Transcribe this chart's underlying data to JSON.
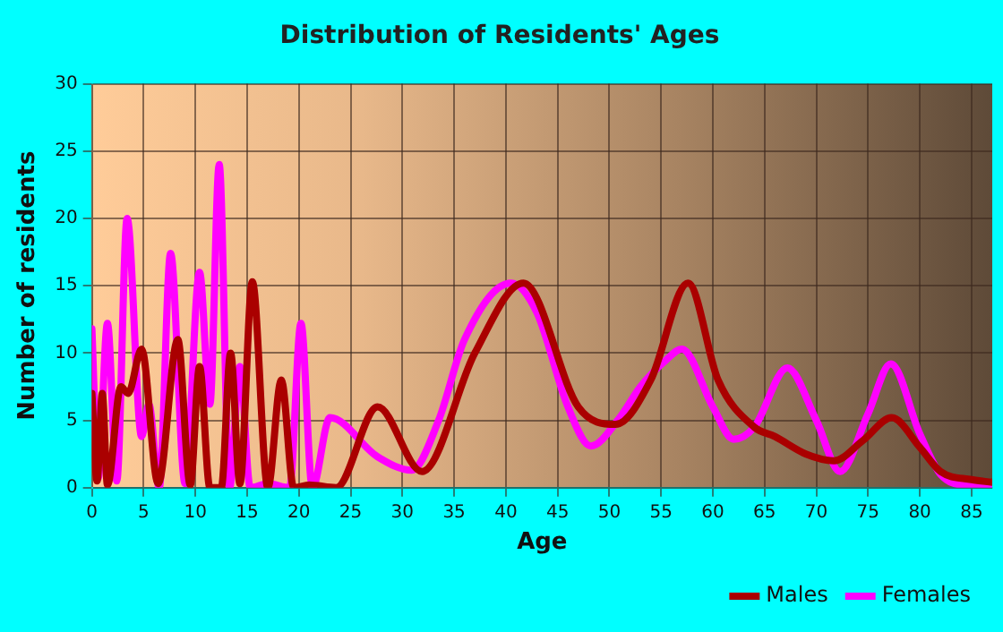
{
  "chart_data": {
    "type": "line",
    "title": "Distribution of Residents' Ages",
    "xlabel": "Age",
    "ylabel": "Number of residents",
    "xlim": [
      0,
      87
    ],
    "xticks": [
      0,
      5,
      10,
      15,
      20,
      25,
      30,
      35,
      40,
      45,
      50,
      55,
      60,
      65,
      70,
      75,
      80,
      85
    ],
    "ylim": [
      0,
      30
    ],
    "yticks": [
      0,
      5,
      10,
      15,
      20,
      25,
      30
    ],
    "grid": true,
    "legend": "bottom right",
    "marker": "none",
    "line_style": "solid",
    "series": [
      {
        "name": "Males",
        "color": "#aa0000",
        "x": [
          0,
          0.5,
          1,
          1.5,
          2.8,
          3.5,
          4.8,
          6.4,
          8.3,
          9.5,
          10.4,
          11.4,
          12.5,
          13.4,
          14.3,
          15.5,
          17,
          18.3,
          19.5,
          21,
          23.6,
          27.6,
          31.9,
          37,
          41.7,
          47,
          50.6,
          54,
          57.6,
          60.5,
          64,
          66,
          69,
          71.7,
          74.5,
          77.3,
          80,
          82,
          85,
          87
        ],
        "values": [
          7,
          0.5,
          7,
          0.2,
          7.5,
          7,
          10.3,
          0.3,
          11,
          0.2,
          9,
          0,
          0,
          10,
          0.3,
          15.3,
          0,
          8,
          0,
          0.2,
          0,
          6,
          1.2,
          10,
          15.2,
          6,
          4.7,
          8,
          15.2,
          8,
          4.5,
          3.8,
          2.5,
          2,
          3.5,
          5.2,
          3,
          1.2,
          0.6,
          0.4
        ]
      },
      {
        "name": "Females",
        "color": "#ff00ff",
        "x": [
          0,
          0.6,
          1.5,
          2.4,
          3.4,
          4.8,
          5.5,
          6.5,
          7.6,
          9,
          10.4,
          11.4,
          12.3,
          13.3,
          14.3,
          15.3,
          17,
          19.1,
          20.2,
          21.3,
          23,
          27.6,
          30.9,
          33.5,
          36,
          40.5,
          43,
          46,
          48.2,
          51,
          53,
          55.5,
          57,
          60,
          62,
          64,
          67.2,
          70,
          72.3,
          75,
          77.2,
          80,
          82,
          85,
          87
        ],
        "values": [
          11.8,
          0.7,
          12.2,
          0.5,
          20,
          3.8,
          6.2,
          0,
          17.4,
          0.3,
          16,
          6.2,
          24,
          0,
          9,
          0,
          0.3,
          0,
          12.2,
          0,
          5.2,
          2.3,
          1.3,
          5,
          11,
          15.2,
          13,
          6,
          3.1,
          5.2,
          7.5,
          9.5,
          10.3,
          6,
          3.6,
          4.5,
          8.9,
          5,
          1.2,
          5.5,
          9.2,
          4,
          1,
          0.1,
          0
        ]
      }
    ]
  }
}
